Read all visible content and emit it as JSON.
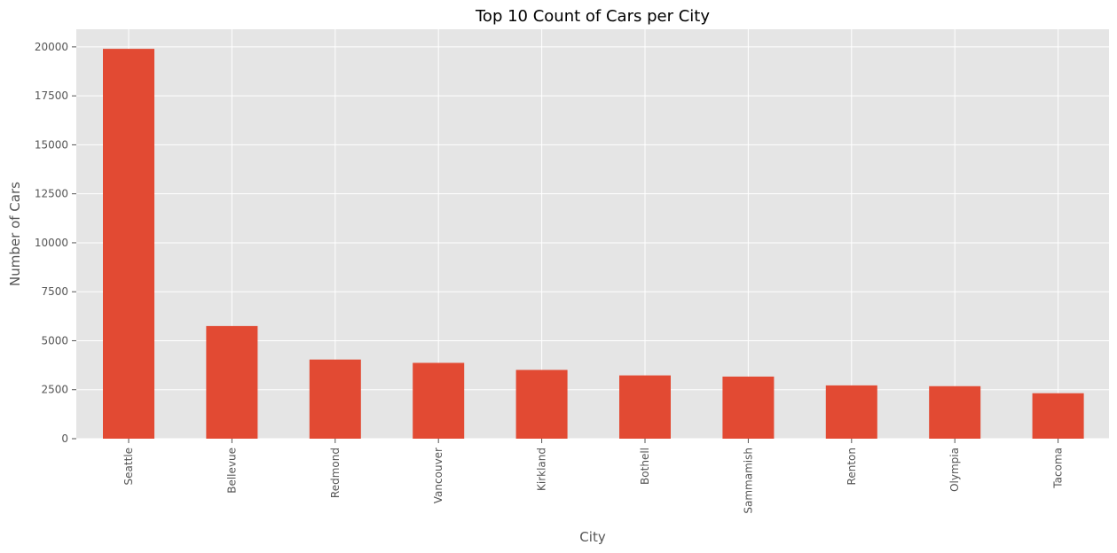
{
  "chart_data": {
    "type": "bar",
    "title": "Top 10 Count of Cars per City",
    "xlabel": "City",
    "ylabel": "Number of Cars",
    "categories": [
      "Seattle",
      "Bellevue",
      "Redmond",
      "Vancouver",
      "Kirkland",
      "Bothell",
      "Sammamish",
      "Renton",
      "Olympia",
      "Tacoma"
    ],
    "values": [
      19900,
      5750,
      4040,
      3870,
      3510,
      3230,
      3170,
      2720,
      2680,
      2320
    ],
    "ylim": [
      0,
      20900
    ],
    "yticks": [
      0,
      2500,
      5000,
      7500,
      10000,
      12500,
      15000,
      17500,
      20000
    ],
    "ytick_labels": [
      "0",
      "2500",
      "5000",
      "7500",
      "10000",
      "12500",
      "15000",
      "17500",
      "20000"
    ],
    "grid": true,
    "style": "ggplot",
    "colors": {
      "bar": "#E24A33",
      "plot_background": "#E5E5E5",
      "grid": "#FFFFFF",
      "tick_label": "#555555",
      "title": "#000000"
    }
  }
}
